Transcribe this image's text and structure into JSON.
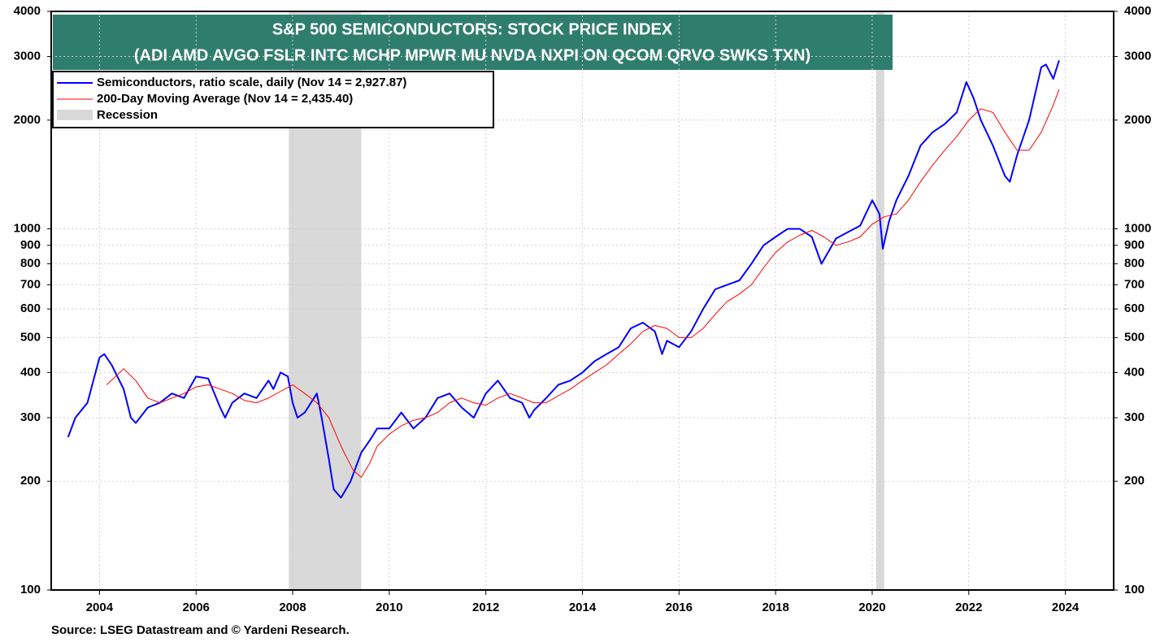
{
  "chart_data": {
    "type": "line",
    "title": "S&P 500 SEMICONDUCTORS: STOCK PRICE INDEX",
    "subtitle": "(ADI AMD AVGO FSLR INTC MCHP MPWR MU NVDA NXPI ON QCOM QRVO SWKS TXN)",
    "source": "Source: LSEG Datastream and © Yardeni Research.",
    "yscale": "log",
    "ylim": [
      100,
      4000
    ],
    "yticks": [
      100,
      200,
      300,
      400,
      500,
      600,
      700,
      800,
      900,
      1000,
      2000,
      3000,
      4000
    ],
    "xlim": [
      2003,
      2025
    ],
    "xticks": [
      2004,
      2006,
      2008,
      2010,
      2012,
      2014,
      2016,
      2018,
      2020,
      2022,
      2024
    ],
    "grid": true,
    "legend": "top-left",
    "recession_label": "Recession",
    "recession_color": "#d9d9d9",
    "recessions": [
      [
        2007.92,
        2009.42
      ],
      [
        2020.08,
        2020.25
      ]
    ],
    "series": [
      {
        "name": "Semiconductors, ratio scale, daily (Nov 14 = 2,927.87)",
        "color": "#0000ff",
        "width": 2,
        "x": [
          2003.35,
          2003.5,
          2003.75,
          2004.0,
          2004.1,
          2004.25,
          2004.5,
          2004.65,
          2004.75,
          2005.0,
          2005.25,
          2005.5,
          2005.75,
          2006.0,
          2006.25,
          2006.5,
          2006.6,
          2006.75,
          2007.0,
          2007.25,
          2007.5,
          2007.6,
          2007.75,
          2007.9,
          2008.0,
          2008.1,
          2008.25,
          2008.5,
          2008.6,
          2008.75,
          2008.85,
          2009.0,
          2009.2,
          2009.42,
          2009.6,
          2009.75,
          2010.0,
          2010.25,
          2010.5,
          2010.75,
          2011.0,
          2011.25,
          2011.5,
          2011.75,
          2012.0,
          2012.25,
          2012.5,
          2012.75,
          2012.9,
          2013.0,
          2013.25,
          2013.5,
          2013.75,
          2014.0,
          2014.25,
          2014.5,
          2014.75,
          2015.0,
          2015.25,
          2015.5,
          2015.65,
          2015.75,
          2016.0,
          2016.25,
          2016.5,
          2016.75,
          2017.0,
          2017.25,
          2017.5,
          2017.75,
          2018.0,
          2018.25,
          2018.5,
          2018.75,
          2018.95,
          2019.25,
          2019.5,
          2019.75,
          2020.0,
          2020.15,
          2020.22,
          2020.35,
          2020.5,
          2020.75,
          2021.0,
          2021.25,
          2021.5,
          2021.75,
          2021.95,
          2022.1,
          2022.25,
          2022.5,
          2022.75,
          2022.85,
          2023.0,
          2023.25,
          2023.5,
          2023.6,
          2023.75,
          2023.87
        ],
        "values": [
          265,
          300,
          330,
          440,
          450,
          420,
          360,
          300,
          290,
          320,
          330,
          350,
          340,
          390,
          385,
          320,
          300,
          330,
          350,
          340,
          380,
          360,
          400,
          390,
          330,
          300,
          310,
          350,
          300,
          230,
          190,
          180,
          200,
          240,
          260,
          280,
          280,
          310,
          280,
          300,
          340,
          350,
          320,
          300,
          350,
          380,
          340,
          330,
          300,
          315,
          340,
          370,
          380,
          400,
          430,
          450,
          470,
          530,
          550,
          520,
          450,
          490,
          470,
          520,
          600,
          680,
          700,
          720,
          800,
          900,
          950,
          1000,
          1000,
          950,
          800,
          940,
          980,
          1020,
          1200,
          1100,
          880,
          1050,
          1200,
          1400,
          1700,
          1850,
          1950,
          2100,
          2550,
          2300,
          2000,
          1700,
          1400,
          1350,
          1600,
          2000,
          2800,
          2850,
          2600,
          2928
        ]
      },
      {
        "name": "200-Day Moving Average (Nov 14 = 2,435.40)",
        "color": "#ff0000",
        "width": 1,
        "x": [
          2004.15,
          2004.5,
          2004.75,
          2005.0,
          2005.25,
          2005.5,
          2005.75,
          2006.0,
          2006.25,
          2006.5,
          2006.75,
          2007.0,
          2007.25,
          2007.5,
          2007.75,
          2008.0,
          2008.25,
          2008.5,
          2008.75,
          2009.0,
          2009.25,
          2009.42,
          2009.6,
          2009.75,
          2010.0,
          2010.25,
          2010.5,
          2010.75,
          2011.0,
          2011.25,
          2011.5,
          2011.75,
          2012.0,
          2012.25,
          2012.5,
          2012.75,
          2013.0,
          2013.25,
          2013.5,
          2013.75,
          2014.0,
          2014.25,
          2014.5,
          2014.75,
          2015.0,
          2015.25,
          2015.5,
          2015.75,
          2016.0,
          2016.25,
          2016.5,
          2016.75,
          2017.0,
          2017.25,
          2017.5,
          2017.75,
          2018.0,
          2018.25,
          2018.5,
          2018.75,
          2019.0,
          2019.25,
          2019.5,
          2019.75,
          2020.0,
          2020.25,
          2020.5,
          2020.75,
          2021.0,
          2021.25,
          2021.5,
          2021.75,
          2022.0,
          2022.25,
          2022.5,
          2022.75,
          2023.0,
          2023.25,
          2023.5,
          2023.75,
          2023.87
        ],
        "values": [
          370,
          410,
          380,
          340,
          330,
          340,
          350,
          365,
          370,
          360,
          350,
          335,
          330,
          340,
          355,
          370,
          350,
          330,
          300,
          250,
          215,
          205,
          225,
          250,
          270,
          285,
          295,
          300,
          310,
          330,
          340,
          330,
          325,
          340,
          350,
          340,
          330,
          330,
          345,
          360,
          380,
          400,
          420,
          450,
          480,
          520,
          540,
          530,
          500,
          500,
          530,
          580,
          630,
          660,
          700,
          780,
          860,
          920,
          960,
          990,
          950,
          900,
          920,
          950,
          1030,
          1080,
          1100,
          1200,
          1350,
          1500,
          1650,
          1800,
          2000,
          2150,
          2100,
          1850,
          1650,
          1650,
          1850,
          2200,
          2435
        ]
      }
    ]
  }
}
